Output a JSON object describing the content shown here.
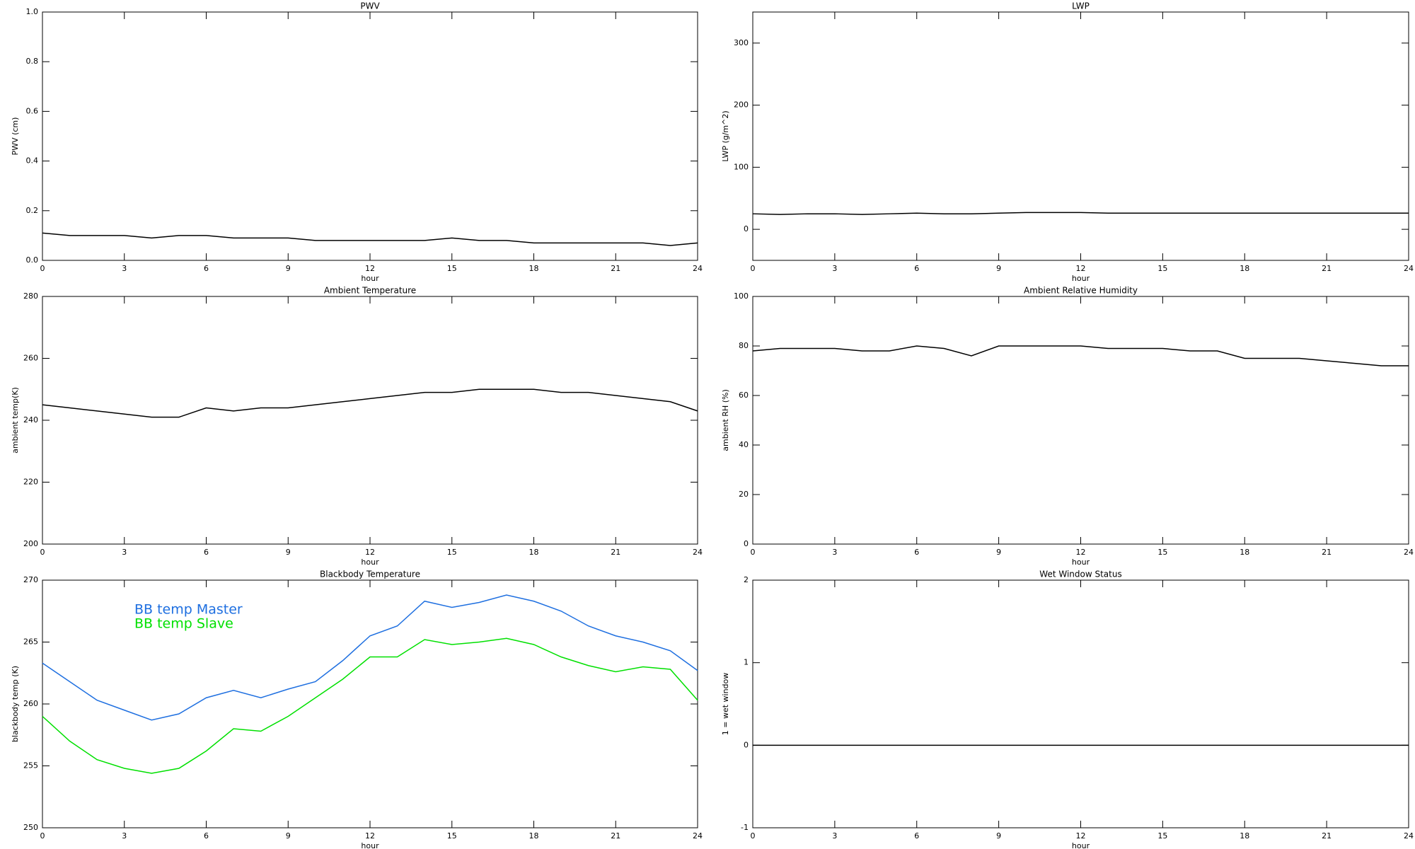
{
  "chart_data": [
    {
      "type": "line",
      "title": "PWV",
      "xlabel": "hour",
      "ylabel": "PWV (cm)",
      "x": [
        0,
        1,
        2,
        3,
        4,
        5,
        6,
        7,
        8,
        9,
        10,
        11,
        12,
        13,
        14,
        15,
        16,
        17,
        18,
        19,
        20,
        21,
        22,
        23,
        24
      ],
      "series": [
        {
          "color": "#000000",
          "values": [
            0.11,
            0.1,
            0.1,
            0.1,
            0.09,
            0.1,
            0.1,
            0.09,
            0.09,
            0.09,
            0.08,
            0.08,
            0.08,
            0.08,
            0.08,
            0.09,
            0.08,
            0.08,
            0.07,
            0.07,
            0.07,
            0.07,
            0.07,
            0.06,
            0.07
          ]
        }
      ],
      "xlim": [
        0,
        24
      ],
      "xticks": [
        0,
        3,
        6,
        9,
        12,
        15,
        18,
        21,
        24
      ],
      "ylim": [
        0,
        1
      ],
      "yticks": [
        {
          "value": 0,
          "label": "0.0"
        },
        0.2,
        0.4,
        0.6,
        0.8,
        {
          "value": 1,
          "label": "1.0"
        }
      ]
    },
    {
      "type": "line",
      "title": "LWP",
      "xlabel": "hour",
      "ylabel": "LWP (g/m^2)",
      "x": [
        0,
        1,
        2,
        3,
        4,
        5,
        6,
        7,
        8,
        9,
        10,
        11,
        12,
        13,
        14,
        15,
        16,
        17,
        18,
        19,
        20,
        21,
        22,
        23,
        24
      ],
      "series": [
        {
          "color": "#000000",
          "values": [
            25,
            24,
            25,
            25,
            24,
            25,
            26,
            25,
            25,
            26,
            27,
            27,
            27,
            26,
            26,
            26,
            26,
            26,
            26,
            26,
            26,
            26,
            26,
            26,
            26
          ]
        }
      ],
      "xlim": [
        0,
        24
      ],
      "xticks": [
        0,
        3,
        6,
        9,
        12,
        15,
        18,
        21,
        24
      ],
      "ylim": [
        -50,
        350
      ],
      "yticks": [
        0,
        100,
        200,
        300
      ]
    },
    {
      "type": "line",
      "title": "Ambient Temperature",
      "xlabel": "hour",
      "ylabel": "ambient temp(K)",
      "x": [
        0,
        1,
        2,
        3,
        4,
        5,
        6,
        7,
        8,
        9,
        10,
        11,
        12,
        13,
        14,
        15,
        16,
        17,
        18,
        19,
        20,
        21,
        22,
        23,
        24
      ],
      "series": [
        {
          "color": "#000000",
          "values": [
            245,
            244,
            243,
            242,
            241,
            241,
            244,
            243,
            244,
            244,
            245,
            246,
            247,
            248,
            249,
            249,
            250,
            250,
            250,
            249,
            249,
            248,
            247,
            246,
            243
          ]
        }
      ],
      "xlim": [
        0,
        24
      ],
      "xticks": [
        0,
        3,
        6,
        9,
        12,
        15,
        18,
        21,
        24
      ],
      "ylim": [
        200,
        280
      ],
      "yticks": [
        200,
        220,
        240,
        260,
        280
      ]
    },
    {
      "type": "line",
      "title": "Ambient Relative Humidity",
      "xlabel": "hour",
      "ylabel": "ambient RH (%)",
      "x": [
        0,
        1,
        2,
        3,
        4,
        5,
        6,
        7,
        8,
        9,
        10,
        11,
        12,
        13,
        14,
        15,
        16,
        17,
        18,
        19,
        20,
        21,
        22,
        23,
        24
      ],
      "series": [
        {
          "color": "#000000",
          "values": [
            78,
            79,
            79,
            79,
            78,
            78,
            80,
            79,
            76,
            80,
            80,
            80,
            80,
            79,
            79,
            79,
            78,
            78,
            75,
            75,
            75,
            74,
            73,
            72,
            72
          ]
        }
      ],
      "xlim": [
        0,
        24
      ],
      "xticks": [
        0,
        3,
        6,
        9,
        12,
        15,
        18,
        21,
        24
      ],
      "ylim": [
        0,
        100
      ],
      "yticks": [
        0,
        20,
        40,
        60,
        80,
        100
      ]
    },
    {
      "type": "line",
      "title": "Blackbody Temperature",
      "xlabel": "hour",
      "ylabel": "blackbody temp (K)",
      "x": [
        0,
        1,
        2,
        3,
        4,
        5,
        6,
        7,
        8,
        9,
        10,
        11,
        12,
        13,
        14,
        15,
        16,
        17,
        18,
        19,
        20,
        21,
        22,
        23,
        24
      ],
      "series": [
        {
          "name": "BB temp Master",
          "color": "#1e6fe0",
          "values": [
            263.3,
            261.8,
            260.3,
            259.5,
            258.7,
            259.2,
            260.5,
            261.1,
            260.5,
            261.2,
            261.8,
            263.5,
            265.5,
            266.3,
            268.3,
            267.8,
            268.2,
            268.8,
            268.3,
            267.5,
            266.3,
            265.5,
            265.0,
            264.3,
            262.7
          ]
        },
        {
          "name": "BB temp Slave",
          "color": "#00e000",
          "values": [
            259,
            257,
            255.5,
            254.8,
            254.4,
            254.8,
            256.2,
            258,
            257.8,
            259,
            260.5,
            262,
            263.8,
            263.8,
            265.2,
            264.8,
            265,
            265.3,
            264.8,
            263.8,
            263.1,
            262.6,
            263,
            262.8,
            260.3
          ]
        }
      ],
      "legend": "upper left",
      "xlim": [
        0,
        24
      ],
      "xticks": [
        0,
        3,
        6,
        9,
        12,
        15,
        18,
        21,
        24
      ],
      "ylim": [
        250,
        270
      ],
      "yticks": [
        250,
        255,
        260,
        265,
        270
      ]
    },
    {
      "type": "line",
      "title": "Wet Window Status",
      "xlabel": "hour",
      "ylabel": "1 = wet window",
      "x": [
        0,
        24
      ],
      "series": [
        {
          "color": "#000000",
          "values": [
            0,
            0
          ]
        }
      ],
      "xlim": [
        0,
        24
      ],
      "xticks": [
        0,
        3,
        6,
        9,
        12,
        15,
        18,
        21,
        24
      ],
      "ylim": [
        -1,
        2
      ],
      "yticks": [
        -1,
        0,
        1,
        2
      ]
    }
  ]
}
